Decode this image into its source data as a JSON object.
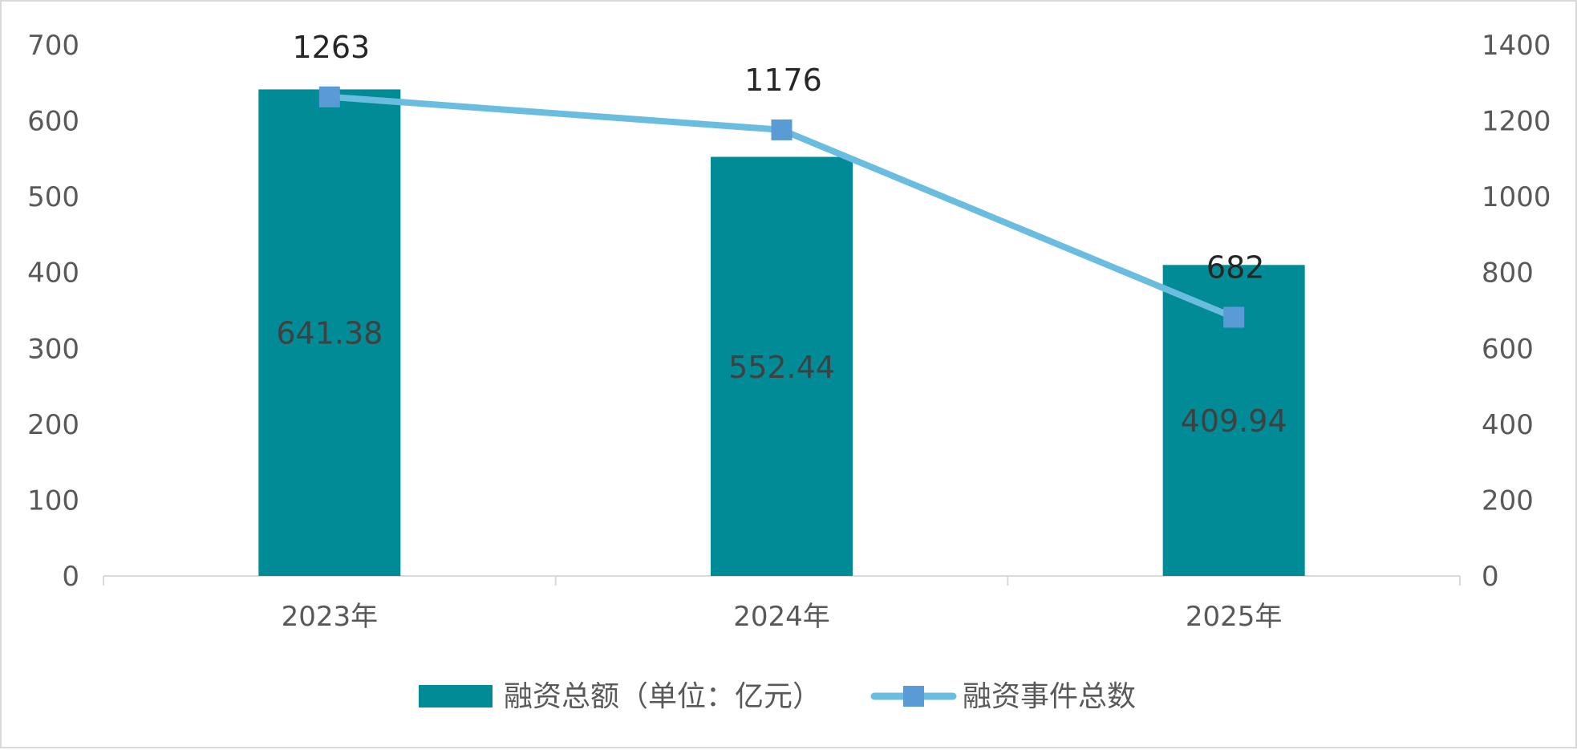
{
  "chart_data": {
    "type": "bar",
    "categories": [
      "2023年",
      "2024年",
      "2025年"
    ],
    "series": [
      {
        "name": "融资总额（单位：亿元）",
        "type": "bar",
        "axis": "left",
        "values": [
          641.38,
          552.44,
          409.94
        ],
        "labels": [
          "641.38",
          "552.44",
          "409.94"
        ],
        "color": "#008b96"
      },
      {
        "name": "融资事件总数",
        "type": "line",
        "axis": "right",
        "values": [
          1263,
          1176,
          682
        ],
        "labels": [
          "1263",
          "1176",
          "682"
        ],
        "color": "#6bbde0",
        "marker": "square",
        "marker_color": "#5b9bd5"
      }
    ],
    "y_left": {
      "range": [
        0,
        700
      ],
      "ticks": [
        "0",
        "100",
        "200",
        "300",
        "400",
        "500",
        "600",
        "700"
      ]
    },
    "y_right": {
      "range": [
        0,
        1400
      ],
      "ticks": [
        "0",
        "200",
        "400",
        "600",
        "800",
        "1000",
        "1200",
        "1400"
      ]
    },
    "grid": false,
    "legend": "bottom"
  }
}
